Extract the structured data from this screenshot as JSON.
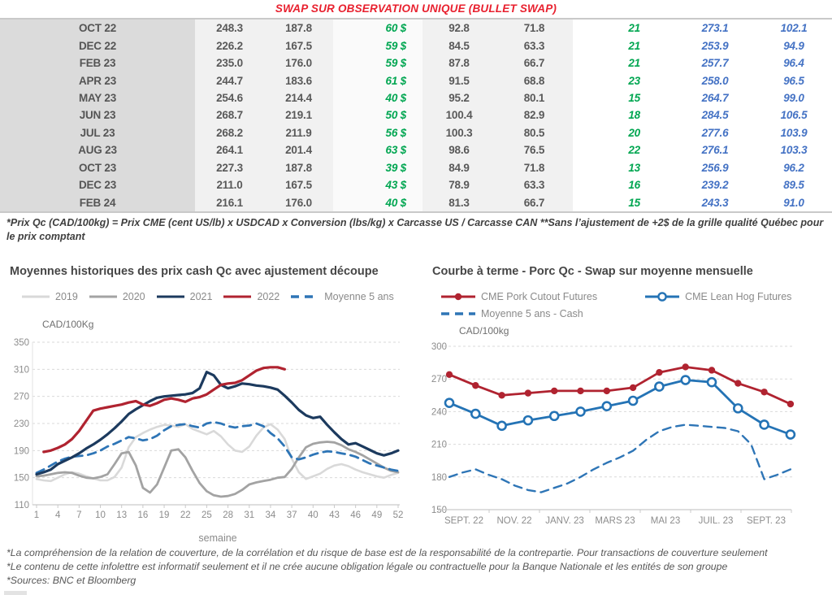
{
  "title": "SWAP SUR OBSERVATION UNIQUE (BULLET SWAP)",
  "table": {
    "rows": [
      [
        "OCT 22",
        "248.3",
        "187.8",
        "60 $",
        "92.8",
        "71.8",
        "21",
        "273.1",
        "102.1"
      ],
      [
        "DEC 22",
        "226.2",
        "167.5",
        "59 $",
        "84.5",
        "63.3",
        "21",
        "253.9",
        "94.9"
      ],
      [
        "FEB 23",
        "235.0",
        "176.0",
        "59 $",
        "87.8",
        "66.7",
        "21",
        "257.7",
        "96.4"
      ],
      [
        "APR 23",
        "244.7",
        "183.6",
        "61 $",
        "91.5",
        "68.8",
        "23",
        "258.0",
        "96.5"
      ],
      [
        "MAY 23",
        "254.6",
        "214.4",
        "40 $",
        "95.2",
        "80.1",
        "15",
        "264.7",
        "99.0"
      ],
      [
        "JUN 23",
        "268.7",
        "219.1",
        "50 $",
        "100.4",
        "82.9",
        "18",
        "284.5",
        "106.5"
      ],
      [
        "JUL 23",
        "268.2",
        "211.9",
        "56 $",
        "100.3",
        "80.5",
        "20",
        "277.6",
        "103.9"
      ],
      [
        "AUG 23",
        "264.1",
        "201.4",
        "63 $",
        "98.6",
        "76.5",
        "22",
        "276.1",
        "103.3"
      ],
      [
        "OCT 23",
        "227.3",
        "187.8",
        "39 $",
        "84.9",
        "71.8",
        "13",
        "256.9",
        "96.2"
      ],
      [
        "DEC 23",
        "211.0",
        "167.5",
        "43 $",
        "78.9",
        "63.3",
        "16",
        "239.2",
        "89.5"
      ],
      [
        "FEB 24",
        "216.1",
        "176.0",
        "40 $",
        "81.3",
        "66.7",
        "15",
        "243.3",
        "91.0"
      ]
    ]
  },
  "table_footnote": "*Prix Qc (CAD/100kg) = Prix CME (cent US/lb) x USDCAD x Conversion (lbs/kg) x Carcasse US / Carcasse CAN **Sans l’ajustement de +2$ de la grille qualité Québec pour le prix comptant",
  "colors": {
    "title_red": "#e8202e",
    "table_green": "#00a651",
    "table_blue": "#4472c4",
    "table_text_gray": "#595959",
    "axis_text": "#8c8c8c",
    "gridline": "#d9d9d9"
  },
  "chart_data": [
    {
      "type": "line",
      "title": "Moyennes historiques des prix cash Qc avec ajustement découpe",
      "unit_label": "CAD/100Kg",
      "xlabel": "semaine",
      "x_range": [
        1,
        52
      ],
      "x_ticks": [
        1,
        4,
        7,
        10,
        13,
        16,
        19,
        22,
        25,
        28,
        31,
        34,
        37,
        40,
        43,
        46,
        49,
        52
      ],
      "ylim": [
        110,
        350
      ],
      "y_ticks": [
        110,
        150,
        190,
        230,
        270,
        310,
        350
      ],
      "grid": "horizontal-dashed",
      "legend_position": "top",
      "series": [
        {
          "name": "2019",
          "color": "#d9d9d9",
          "style": "solid",
          "x_start": 1,
          "values": [
            148,
            146,
            145,
            150,
            155,
            158,
            156,
            152,
            149,
            146,
            146,
            151,
            165,
            195,
            210,
            216,
            221,
            225,
            228,
            227,
            225,
            229,
            222,
            218,
            214,
            219,
            211,
            199,
            190,
            188,
            196,
            212,
            224,
            229,
            221,
            207,
            178,
            158,
            148,
            152,
            156,
            163,
            168,
            170,
            167,
            162,
            158,
            155,
            152,
            150,
            154,
            157
          ]
        },
        {
          "name": "2020",
          "color": "#a3a3a3",
          "style": "solid",
          "x_start": 1,
          "values": [
            152,
            153,
            155,
            157,
            158,
            157,
            153,
            150,
            149,
            151,
            155,
            170,
            186,
            188,
            168,
            135,
            128,
            140,
            165,
            190,
            192,
            180,
            160,
            142,
            130,
            124,
            122,
            123,
            126,
            132,
            140,
            143,
            145,
            147,
            150,
            151,
            163,
            180,
            195,
            200,
            202,
            203,
            202,
            198,
            192,
            188,
            183,
            177,
            171,
            165,
            160,
            158
          ]
        },
        {
          "name": "2021",
          "color": "#1c3a5e",
          "style": "solid",
          "x_start": 1,
          "values": [
            155,
            158,
            162,
            170,
            175,
            180,
            186,
            193,
            199,
            206,
            214,
            223,
            233,
            244,
            251,
            257,
            263,
            268,
            270,
            271,
            272,
            273,
            275,
            282,
            306,
            301,
            287,
            282,
            285,
            289,
            288,
            286,
            285,
            283,
            280,
            271,
            261,
            250,
            242,
            238,
            240,
            228,
            217,
            207,
            199,
            201,
            196,
            191,
            186,
            183,
            186,
            190
          ]
        },
        {
          "name": "2022",
          "color": "#b02330",
          "style": "solid",
          "x_start": 2,
          "values": [
            188,
            190,
            194,
            199,
            207,
            219,
            234,
            249,
            252,
            254,
            256,
            258,
            261,
            263,
            258,
            256,
            260,
            265,
            267,
            265,
            262,
            267,
            269,
            273,
            280,
            287,
            289,
            290,
            294,
            301,
            308,
            312,
            313,
            313,
            310
          ]
        },
        {
          "name": "Moyenne 5 ans",
          "color": "#2e75b6",
          "style": "dashed",
          "x_start": 1,
          "values": [
            157,
            162,
            168,
            174,
            178,
            181,
            182,
            183,
            186,
            190,
            196,
            200,
            205,
            210,
            208,
            205,
            207,
            212,
            220,
            226,
            228,
            229,
            226,
            224,
            230,
            232,
            230,
            226,
            224,
            226,
            227,
            230,
            226,
            216,
            208,
            196,
            180,
            177,
            180,
            184,
            187,
            189,
            188,
            186,
            184,
            181,
            176,
            171,
            168,
            165,
            162,
            160
          ]
        }
      ]
    },
    {
      "type": "line",
      "title": "Courbe à terme - Porc Qc - Swap sur moyenne mensuelle",
      "unit_label": "CAD/100kg",
      "x_tick_labels": [
        "SEPT. 22",
        "NOV. 22",
        "JANV. 23",
        "MARS 23",
        "MAI 23",
        "JUIL. 23",
        "SEPT. 23"
      ],
      "ylim": [
        150,
        300
      ],
      "y_ticks": [
        150,
        180,
        210,
        240,
        270,
        300
      ],
      "grid": "horizontal-dashed",
      "legend_position": "top",
      "series": [
        {
          "name": "CME Pork Cutout Futures",
          "color": "#b02330",
          "style": "solid",
          "marker": "filled-circle",
          "x_start": 0,
          "values": [
            274,
            264,
            255,
            257,
            259,
            259,
            259,
            262,
            276,
            281,
            278,
            266,
            258,
            247
          ]
        },
        {
          "name": "CME Lean Hog Futures",
          "color": "#2473b5",
          "style": "solid",
          "marker": "open-circle",
          "x_start": 0,
          "values": [
            248,
            238,
            227,
            232,
            236,
            240,
            245,
            250,
            263,
            269,
            267,
            243,
            228,
            219
          ]
        },
        {
          "name": "Moyenne 5 ans - Cash",
          "color": "#2e75b6",
          "style": "dashed",
          "x_start": 0,
          "x_step": 0.5,
          "values": [
            180,
            184,
            187,
            182,
            178,
            172,
            168,
            166,
            170,
            174,
            180,
            187,
            193,
            198,
            204,
            214,
            222,
            226,
            228,
            227,
            226,
            225,
            222,
            210,
            178,
            182,
            187
          ]
        }
      ]
    }
  ],
  "footer_lines": [
    "*La compréhension de la relation de couverture, de la corrélation et du risque de base est de la responsabilité de la contrepartie. Pour transactions de couverture seulement",
    "*Le contenu de cette infolettre est informatif seulement et il ne crée aucune obligation légale ou contractuelle pour la Banque Nationale et les entités de son groupe",
    "*Sources: BNC et Bloomberg"
  ]
}
